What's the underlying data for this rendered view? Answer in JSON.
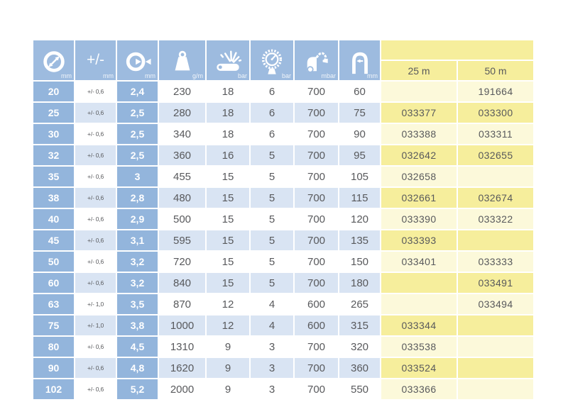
{
  "colors": {
    "header_blue": "#9dbbdf",
    "cell_blue": "#93b5dc",
    "stripe_blue": "#d9e4f3",
    "yellow_bright": "#f6ee9c",
    "yellow_pale": "#fcf9da",
    "text_gray": "#58595c"
  },
  "table": {
    "columns": [
      {
        "icon": "inner-diameter-icon",
        "unit": "mm"
      },
      {
        "icon": "tolerance-icon",
        "unit": "mm",
        "symbol": "+/-"
      },
      {
        "icon": "wall-thickness-icon",
        "unit": "mm"
      },
      {
        "icon": "weight-icon",
        "unit": "g/m"
      },
      {
        "icon": "burst-pressure-icon",
        "unit": "bar"
      },
      {
        "icon": "working-pressure-icon",
        "unit": "bar"
      },
      {
        "icon": "vacuum-icon",
        "unit": "mbar"
      },
      {
        "icon": "bend-radius-icon",
        "unit": "mm"
      }
    ],
    "length_columns": [
      "25 m",
      "50 m"
    ],
    "rows": [
      {
        "id": "20",
        "tol": "+/- 0,6",
        "wall": "2,4",
        "weight": "230",
        "burst": "18",
        "work": "6",
        "vac": "700",
        "bend": "60",
        "art25": "",
        "art50": "191664"
      },
      {
        "id": "25",
        "tol": "+/- 0,6",
        "wall": "2,5",
        "weight": "280",
        "burst": "18",
        "work": "6",
        "vac": "700",
        "bend": "75",
        "art25": "033377",
        "art50": "033300"
      },
      {
        "id": "30",
        "tol": "+/- 0,6",
        "wall": "2,5",
        "weight": "340",
        "burst": "18",
        "work": "6",
        "vac": "700",
        "bend": "90",
        "art25": "033388",
        "art50": "033311"
      },
      {
        "id": "32",
        "tol": "+/- 0,6",
        "wall": "2,5",
        "weight": "360",
        "burst": "16",
        "work": "5",
        "vac": "700",
        "bend": "95",
        "art25": "032642",
        "art50": "032655"
      },
      {
        "id": "35",
        "tol": "+/- 0,6",
        "wall": "3",
        "weight": "455",
        "burst": "15",
        "work": "5",
        "vac": "700",
        "bend": "105",
        "art25": "032658",
        "art50": ""
      },
      {
        "id": "38",
        "tol": "+/- 0,6",
        "wall": "2,8",
        "weight": "480",
        "burst": "15",
        "work": "5",
        "vac": "700",
        "bend": "115",
        "art25": "032661",
        "art50": "032674"
      },
      {
        "id": "40",
        "tol": "+/- 0,6",
        "wall": "2,9",
        "weight": "500",
        "burst": "15",
        "work": "5",
        "vac": "700",
        "bend": "120",
        "art25": "033390",
        "art50": "033322"
      },
      {
        "id": "45",
        "tol": "+/- 0,6",
        "wall": "3,1",
        "weight": "595",
        "burst": "15",
        "work": "5",
        "vac": "700",
        "bend": "135",
        "art25": "033393",
        "art50": ""
      },
      {
        "id": "50",
        "tol": "+/- 0,6",
        "wall": "3,2",
        "weight": "720",
        "burst": "15",
        "work": "5",
        "vac": "700",
        "bend": "150",
        "art25": "033401",
        "art50": "033333"
      },
      {
        "id": "60",
        "tol": "+/- 0,6",
        "wall": "3,2",
        "weight": "840",
        "burst": "15",
        "work": "5",
        "vac": "700",
        "bend": "180",
        "art25": "",
        "art50": "033491"
      },
      {
        "id": "63",
        "tol": "+/- 1,0",
        "wall": "3,5",
        "weight": "870",
        "burst": "12",
        "work": "4",
        "vac": "600",
        "bend": "265",
        "art25": "",
        "art50": "033494"
      },
      {
        "id": "75",
        "tol": "+/- 1,0",
        "wall": "3,8",
        "weight": "1000",
        "burst": "12",
        "work": "4",
        "vac": "600",
        "bend": "315",
        "art25": "033344",
        "art50": ""
      },
      {
        "id": "80",
        "tol": "+/- 0,6",
        "wall": "4,5",
        "weight": "1310",
        "burst": "9",
        "work": "3",
        "vac": "700",
        "bend": "320",
        "art25": "033538",
        "art50": ""
      },
      {
        "id": "90",
        "tol": "+/- 0,6",
        "wall": "4,8",
        "weight": "1620",
        "burst": "9",
        "work": "3",
        "vac": "700",
        "bend": "360",
        "art25": "033524",
        "art50": ""
      },
      {
        "id": "102",
        "tol": "+/- 0,6",
        "wall": "5,2",
        "weight": "2000",
        "burst": "9",
        "work": "3",
        "vac": "700",
        "bend": "550",
        "art25": "033366",
        "art50": ""
      }
    ]
  }
}
